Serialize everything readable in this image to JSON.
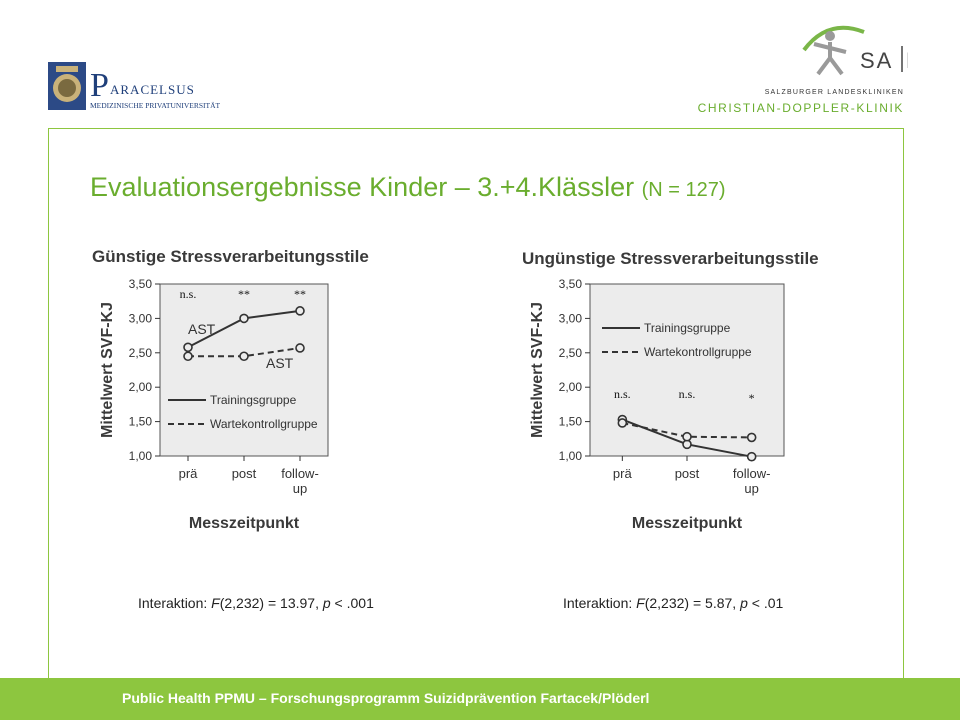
{
  "slide": {
    "title_main": "Evaluationsergebnisse Kinder – 3.+4.Klässler",
    "title_suffix": "(N = 127)",
    "footer": "Public Health PPMU – Forschungsprogramm Suizidprävention Fartacek/Plöderl",
    "accent_color": "#6aad2e",
    "footer_color": "#8dc63f"
  },
  "logos": {
    "paracelsus": {
      "initial": "P",
      "name": "ARACELSUS",
      "subtitle": "MEDIZINISCHE PRIVATUNIVERSITÄT"
    },
    "salk": {
      "left": "SA",
      "right": "LK",
      "line1": "SALZBURGER LANDESKLINIKEN",
      "line2": "CHRISTIAN-DOPPLER-KLINIK"
    }
  },
  "captions": {
    "left": {
      "pre": "Interaktion: ",
      "f": "F",
      "mid": "(2,232) = 13.97, ",
      "p": "p",
      "post": " < .001"
    },
    "right": {
      "pre": "Interaktion: ",
      "f": "F",
      "mid": "(2,232) = 5.87, ",
      "p": "p",
      "post": " < .01"
    }
  },
  "chart_data": [
    {
      "type": "line",
      "title": "Günstige Stressverarbeitungsstile",
      "xlabel": "Messzeitpunkt",
      "ylabel": "Mittelwert SVF-KJ",
      "categories": [
        "prä",
        "post",
        "follow-up"
      ],
      "ylim": [
        1.0,
        3.5
      ],
      "yticks": [
        "1,00",
        "1,50",
        "2,00",
        "2,50",
        "3,00",
        "3,50"
      ],
      "series": [
        {
          "name": "Trainingsgruppe",
          "style": "solid",
          "values": [
            2.58,
            3.0,
            3.11
          ]
        },
        {
          "name": "Wartekontrollgruppe",
          "style": "dashed",
          "values": [
            2.45,
            2.45,
            2.57
          ]
        }
      ],
      "legend": "bottom-left",
      "significance": [
        "n.s.",
        "**",
        "**"
      ],
      "annotations": [
        "AST",
        "AST"
      ]
    },
    {
      "type": "line",
      "title": "Ungünstige Stressverarbeitungsstile",
      "xlabel": "Messzeitpunkt",
      "ylabel": "Mittelwert SVF-KJ",
      "categories": [
        "prä",
        "post",
        "follow-up"
      ],
      "ylim": [
        1.0,
        3.5
      ],
      "yticks": [
        "1,00",
        "1,50",
        "2,00",
        "2,50",
        "3,00",
        "3,50"
      ],
      "series": [
        {
          "name": "Trainingsgruppe",
          "style": "solid",
          "values": [
            1.53,
            1.17,
            0.99
          ]
        },
        {
          "name": "Wartekontrollgruppe",
          "style": "dashed",
          "values": [
            1.48,
            1.28,
            1.27
          ]
        }
      ],
      "legend": "top-left",
      "significance": [
        "n.s.",
        "n.s.",
        "*"
      ]
    }
  ]
}
